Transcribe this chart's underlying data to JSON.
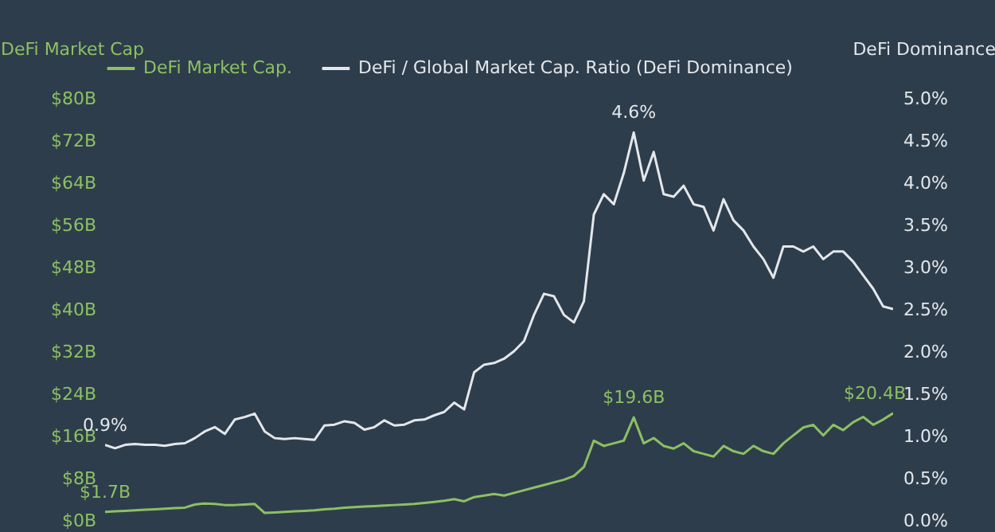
{
  "chart_data": {
    "type": "line",
    "ylabel": "DeFi Market Cap",
    "y2label": "DeFi Dominance",
    "categories": [
      null,
      null,
      null,
      null,
      null,
      null,
      null,
      null,
      null,
      null,
      null,
      null,
      null,
      null,
      null,
      null,
      null,
      null,
      null,
      null,
      null,
      null,
      null,
      null,
      null,
      null,
      null,
      null,
      null,
      null,
      null,
      null,
      null,
      null,
      null,
      null,
      null,
      null,
      null,
      null,
      null,
      null,
      null,
      null,
      null,
      null,
      null,
      null,
      null,
      null,
      null,
      null,
      null,
      null,
      null,
      null,
      null,
      null,
      null,
      null,
      null,
      null,
      null,
      null,
      null,
      null,
      null,
      null,
      null,
      null,
      null,
      null,
      null,
      null,
      null,
      null,
      null,
      null,
      null,
      null
    ],
    "series": [
      {
        "name": "DeFi Market Cap.",
        "color": "#8cc063",
        "values": [
          1.7,
          1.8,
          1.9,
          2.0,
          2.1,
          2.2,
          2.3,
          2.4,
          2.5,
          3.1,
          3.3,
          3.2,
          3.0,
          3.0,
          3.1,
          3.2,
          1.5,
          1.6,
          1.7,
          1.8,
          1.9,
          2.0,
          2.2,
          2.3,
          2.5,
          2.6,
          2.7,
          2.8,
          2.9,
          3.0,
          3.1,
          3.2,
          3.4,
          3.6,
          3.8,
          4.1,
          3.7,
          4.5,
          4.8,
          5.1,
          4.8,
          5.3,
          5.8,
          6.3,
          6.8,
          7.3,
          7.8,
          8.5,
          10.2,
          15.2,
          14.2,
          14.7,
          15.2,
          19.6,
          14.7,
          15.7,
          14.2,
          13.7,
          14.7,
          13.2,
          12.7,
          12.2,
          14.2,
          13.2,
          12.7,
          14.2,
          13.2,
          12.7,
          14.7,
          16.2,
          17.7,
          18.2,
          16.2,
          18.2,
          17.2,
          18.7,
          19.7,
          18.2,
          19.2,
          20.4
        ],
        "value_labels": [
          "$1.7B",
          null,
          null,
          null,
          null,
          null,
          null,
          null,
          null,
          null,
          null,
          null,
          null,
          null,
          null,
          null,
          null,
          null,
          null,
          null,
          null,
          null,
          null,
          null,
          null,
          null,
          null,
          null,
          null,
          null,
          null,
          null,
          null,
          null,
          null,
          null,
          null,
          null,
          null,
          null,
          null,
          null,
          null,
          null,
          null,
          null,
          null,
          null,
          null,
          null,
          null,
          null,
          null,
          "$19.6B",
          null,
          null,
          null,
          null,
          null,
          null,
          null,
          null,
          null,
          null,
          null,
          null,
          null,
          null,
          null,
          null,
          null,
          null,
          null,
          null,
          null,
          null,
          null,
          null,
          null,
          "$20.4B"
        ]
      },
      {
        "name": "DeFi / Global Market Cap. Ratio (DeFi Dominance)",
        "color": "#e3e7ec",
        "axis": "y2",
        "values": [
          0.9,
          0.86,
          0.9,
          0.91,
          0.9,
          0.9,
          0.89,
          0.91,
          0.92,
          0.98,
          1.06,
          1.11,
          1.03,
          1.2,
          1.23,
          1.27,
          1.06,
          0.98,
          0.97,
          0.98,
          0.97,
          0.96,
          1.13,
          1.14,
          1.18,
          1.16,
          1.08,
          1.11,
          1.19,
          1.13,
          1.14,
          1.19,
          1.2,
          1.25,
          1.29,
          1.4,
          1.32,
          1.76,
          1.85,
          1.87,
          1.92,
          2.01,
          2.13,
          2.44,
          2.69,
          2.66,
          2.44,
          2.35,
          2.6,
          3.63,
          3.87,
          3.75,
          4.12,
          4.6,
          4.03,
          4.37,
          3.87,
          3.84,
          3.97,
          3.75,
          3.72,
          3.44,
          3.81,
          3.56,
          3.44,
          3.25,
          3.1,
          2.88,
          3.25,
          3.25,
          3.19,
          3.25,
          3.1,
          3.19,
          3.19,
          3.07,
          2.91,
          2.75,
          2.54,
          2.51
        ],
        "value_labels": [
          "0.9%",
          null,
          null,
          null,
          null,
          null,
          null,
          null,
          null,
          null,
          null,
          null,
          null,
          null,
          null,
          null,
          null,
          null,
          null,
          null,
          null,
          null,
          null,
          null,
          null,
          null,
          null,
          null,
          null,
          null,
          null,
          null,
          null,
          null,
          null,
          null,
          null,
          null,
          null,
          null,
          null,
          null,
          null,
          null,
          null,
          null,
          null,
          null,
          null,
          null,
          null,
          null,
          null,
          "4.6%",
          null,
          null,
          null,
          null,
          null,
          null,
          null,
          null,
          null,
          null,
          null,
          null,
          null,
          null,
          null,
          null,
          null,
          null,
          null,
          null,
          null,
          null,
          null,
          null,
          null,
          null
        ]
      }
    ],
    "ylim": [
      0,
      80
    ],
    "yticks": [
      {
        "value": 0,
        "label": "$0B"
      },
      {
        "value": 8,
        "label": "$8B"
      },
      {
        "value": 16,
        "label": "$16B"
      },
      {
        "value": 24,
        "label": "$24B"
      },
      {
        "value": 32,
        "label": "$32B"
      },
      {
        "value": 40,
        "label": "$40B"
      },
      {
        "value": 48,
        "label": "$48B"
      },
      {
        "value": 56,
        "label": "$56B"
      },
      {
        "value": 64,
        "label": "$64B"
      },
      {
        "value": 72,
        "label": "$72B"
      },
      {
        "value": 80,
        "label": "$80B"
      }
    ],
    "y2lim": [
      0,
      5
    ],
    "y2ticks": [
      {
        "value": 0,
        "label": "0.0%"
      },
      {
        "value": 0.5,
        "label": "0.5%"
      },
      {
        "value": 1,
        "label": "1.0%"
      },
      {
        "value": 1.5,
        "label": "1.5%"
      },
      {
        "value": 2,
        "label": "2.0%"
      },
      {
        "value": 2.5,
        "label": "2.5%"
      },
      {
        "value": 3,
        "label": "3.0%"
      },
      {
        "value": 3.5,
        "label": "3.5%"
      },
      {
        "value": 4,
        "label": "4.0%"
      },
      {
        "value": 4.5,
        "label": "4.5%"
      },
      {
        "value": 5,
        "label": "5.0%"
      }
    ],
    "legend": "top"
  }
}
